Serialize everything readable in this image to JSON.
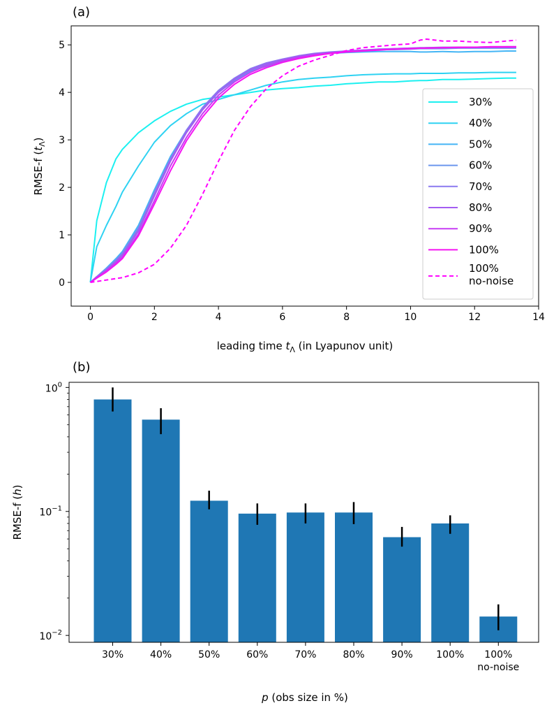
{
  "figure": {
    "panel_a_label": "(a)",
    "panel_b_label": "(b)"
  },
  "chart_data": [
    {
      "type": "line",
      "panel": "(a)",
      "xlabel": "leading time t_Λ (in Lyapunov unit)",
      "xlabel_main": "leading time ",
      "xlabel_var": "t",
      "xlabel_sub": "Λ",
      "xlabel_rest": " (in Lyapunov unit)",
      "ylabel": "RMSE-f (t_Λ)",
      "ylabel_main": "RMSE-f (",
      "ylabel_var": "t",
      "ylabel_sub": "Λ",
      "ylabel_rest": ")",
      "xlim": [
        -0.6,
        14
      ],
      "ylim": [
        -0.5,
        5.4
      ],
      "xticks": [
        0,
        2,
        4,
        6,
        8,
        10,
        12,
        14
      ],
      "yticks": [
        0,
        1,
        2,
        3,
        4,
        5
      ],
      "grid": false,
      "legend_position": "right",
      "x": [
        0,
        0.2,
        0.5,
        0.8,
        1,
        1.5,
        2,
        2.5,
        3,
        3.5,
        4,
        4.5,
        5,
        5.5,
        6,
        6.5,
        7,
        7.5,
        8,
        8.5,
        9,
        9.5,
        10,
        10.3,
        10.5,
        11,
        11.5,
        12,
        12.5,
        13,
        13.3
      ],
      "series": [
        {
          "name": "30%",
          "color": "#1cf0f0",
          "dashed": false,
          "values": [
            0,
            1.3,
            2.1,
            2.6,
            2.8,
            3.15,
            3.4,
            3.6,
            3.75,
            3.85,
            3.9,
            3.95,
            4.0,
            4.05,
            4.08,
            4.1,
            4.13,
            4.15,
            4.18,
            4.2,
            4.22,
            4.22,
            4.24,
            4.25,
            4.25,
            4.27,
            4.27,
            4.28,
            4.29,
            4.3,
            4.3
          ]
        },
        {
          "name": "40%",
          "color": "#2ed2f2",
          "dashed": false,
          "values": [
            0,
            0.75,
            1.2,
            1.6,
            1.9,
            2.45,
            2.95,
            3.3,
            3.55,
            3.75,
            3.85,
            3.95,
            4.05,
            4.15,
            4.22,
            4.27,
            4.3,
            4.32,
            4.35,
            4.37,
            4.38,
            4.39,
            4.39,
            4.4,
            4.4,
            4.4,
            4.41,
            4.41,
            4.42,
            4.42,
            4.42
          ]
        },
        {
          "name": "50%",
          "color": "#44b5f5",
          "dashed": false,
          "values": [
            0,
            0.12,
            0.3,
            0.5,
            0.65,
            1.2,
            1.95,
            2.65,
            3.2,
            3.65,
            4.0,
            4.25,
            4.45,
            4.55,
            4.65,
            4.72,
            4.78,
            4.82,
            4.84,
            4.85,
            4.86,
            4.86,
            4.86,
            4.85,
            4.85,
            4.86,
            4.85,
            4.86,
            4.86,
            4.87,
            4.87
          ]
        },
        {
          "name": "60%",
          "color": "#6c96ee",
          "dashed": false,
          "values": [
            0,
            0.12,
            0.28,
            0.47,
            0.62,
            1.15,
            1.9,
            2.6,
            3.2,
            3.65,
            4.02,
            4.28,
            4.47,
            4.58,
            4.68,
            4.75,
            4.8,
            4.84,
            4.86,
            4.88,
            4.9,
            4.9,
            4.91,
            4.92,
            4.92,
            4.92,
            4.93,
            4.93,
            4.93,
            4.93,
            4.93
          ]
        },
        {
          "name": "70%",
          "color": "#8a79ef",
          "dashed": false,
          "values": [
            0,
            0.12,
            0.28,
            0.46,
            0.6,
            1.12,
            1.88,
            2.6,
            3.2,
            3.68,
            4.04,
            4.3,
            4.5,
            4.62,
            4.7,
            4.77,
            4.82,
            4.85,
            4.87,
            4.89,
            4.91,
            4.92,
            4.93,
            4.94,
            4.94,
            4.95,
            4.95,
            4.95,
            4.96,
            4.96,
            4.96
          ]
        },
        {
          "name": "80%",
          "color": "#a35cf2",
          "dashed": false,
          "values": [
            0,
            0.11,
            0.26,
            0.44,
            0.57,
            1.08,
            1.82,
            2.55,
            3.15,
            3.63,
            4.0,
            4.27,
            4.47,
            4.6,
            4.69,
            4.76,
            4.81,
            4.84,
            4.87,
            4.89,
            4.9,
            4.92,
            4.93,
            4.93,
            4.94,
            4.94,
            4.95,
            4.95,
            4.95,
            4.96,
            4.96
          ]
        },
        {
          "name": "90%",
          "color": "#c73cf4",
          "dashed": false,
          "values": [
            0,
            0.1,
            0.24,
            0.41,
            0.53,
            1.02,
            1.72,
            2.45,
            3.05,
            3.55,
            3.94,
            4.22,
            4.42,
            4.56,
            4.66,
            4.74,
            4.79,
            4.83,
            4.86,
            4.88,
            4.9,
            4.91,
            4.92,
            4.93,
            4.93,
            4.94,
            4.94,
            4.95,
            4.95,
            4.95,
            4.95
          ]
        },
        {
          "name": "100%",
          "color": "#f514f2",
          "dashed": false,
          "values": [
            0,
            0.09,
            0.22,
            0.38,
            0.5,
            0.98,
            1.65,
            2.35,
            2.98,
            3.48,
            3.88,
            4.17,
            4.38,
            4.52,
            4.63,
            4.71,
            4.77,
            4.82,
            4.85,
            4.87,
            4.89,
            4.91,
            4.92,
            4.93,
            4.93,
            4.94,
            4.95,
            4.95,
            4.96,
            4.96,
            4.96
          ]
        },
        {
          "name": "100%\nno-noise",
          "name_line1": "100%",
          "name_line2": "no-noise",
          "color": "#ff00ff",
          "dashed": true,
          "values": [
            0,
            0.02,
            0.05,
            0.08,
            0.1,
            0.2,
            0.38,
            0.72,
            1.2,
            1.85,
            2.55,
            3.2,
            3.7,
            4.08,
            4.35,
            4.55,
            4.68,
            4.78,
            4.88,
            4.94,
            4.97,
            5.0,
            5.02,
            5.1,
            5.12,
            5.08,
            5.08,
            5.06,
            5.05,
            5.08,
            5.1
          ]
        }
      ]
    },
    {
      "type": "bar",
      "panel": "(b)",
      "categories": [
        "30%",
        "40%",
        "50%",
        "60%",
        "70%",
        "80%",
        "90%",
        "100%",
        "100%\nno-noise"
      ],
      "category_lines": [
        [
          "30%"
        ],
        [
          "40%"
        ],
        [
          "50%"
        ],
        [
          "60%"
        ],
        [
          "70%"
        ],
        [
          "80%"
        ],
        [
          "90%"
        ],
        [
          "100%"
        ],
        [
          "100%",
          "no-noise"
        ]
      ],
      "values": [
        0.8,
        0.55,
        0.122,
        0.096,
        0.098,
        0.098,
        0.062,
        0.08,
        0.0142
      ],
      "error_low": [
        0.64,
        0.42,
        0.104,
        0.078,
        0.08,
        0.079,
        0.052,
        0.066,
        0.011
      ],
      "error_high": [
        1.0,
        0.68,
        0.147,
        0.116,
        0.116,
        0.119,
        0.075,
        0.093,
        0.0178
      ],
      "bar_color": "#1f77b4",
      "error_color": "#000000",
      "yscale": "log",
      "ylim": [
        0.0088,
        1.1
      ],
      "yticks": [
        {
          "value": 1,
          "base": "10",
          "exp": "0"
        },
        {
          "value": 0.1,
          "base": "10",
          "exp": "−1"
        },
        {
          "value": 0.01,
          "base": "10",
          "exp": "−2"
        }
      ],
      "xlabel": "p (obs size in %)",
      "xlabel_var": "p",
      "xlabel_rest": " (obs size in %)",
      "ylabel": "RMSE-f (h)",
      "ylabel_main": "RMSE-f (",
      "ylabel_var": "h",
      "ylabel_rest": ")",
      "grid": false
    }
  ]
}
